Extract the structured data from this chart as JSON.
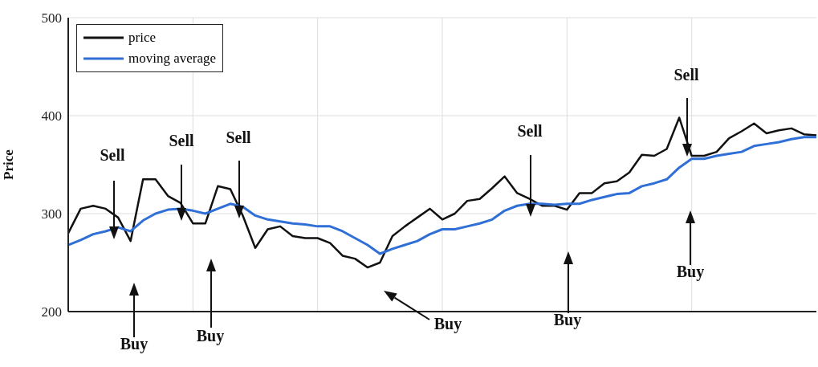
{
  "chart_data": {
    "type": "line",
    "ylabel": "Price",
    "categories": [
      null,
      null,
      null,
      null,
      null,
      null,
      null,
      null,
      null,
      null,
      null,
      null,
      null,
      null,
      null,
      null,
      null,
      null,
      null,
      null,
      null,
      null,
      null,
      null,
      null,
      null,
      null,
      null,
      null,
      null,
      null,
      null,
      null,
      null,
      null,
      null,
      null,
      null,
      null,
      null,
      null,
      null,
      null,
      null,
      null,
      null,
      null,
      null,
      null,
      null,
      null,
      null,
      null,
      null,
      null,
      null,
      null,
      null,
      null,
      null,
      null
    ],
    "series": [
      {
        "name": "price",
        "color": "#111111",
        "values": [
          280,
          305,
          308,
          305,
          296,
          272,
          335,
          335,
          318,
          311,
          290,
          290,
          328,
          325,
          298,
          265,
          284,
          287,
          277,
          275,
          275,
          270,
          257,
          254,
          245,
          250,
          277,
          287,
          296,
          305,
          294,
          300,
          313,
          315,
          326,
          338,
          321,
          315,
          308,
          308,
          304,
          321,
          321,
          331,
          333,
          342,
          360,
          359,
          366,
          398,
          359,
          359,
          363,
          377,
          384,
          392,
          382,
          385,
          387,
          381,
          380
        ]
      },
      {
        "name": "moving average",
        "color": "#2f6fd6",
        "values": [
          268,
          273,
          279,
          282,
          286,
          282,
          293,
          300,
          304,
          305,
          303,
          300,
          305,
          310,
          307,
          298,
          294,
          292,
          290,
          289,
          287,
          287,
          282,
          275,
          268,
          259,
          264,
          268,
          272,
          279,
          284,
          284,
          287,
          290,
          294,
          303,
          308,
          310,
          310,
          309,
          310,
          310,
          314,
          317,
          320,
          321,
          328,
          331,
          335,
          347,
          356,
          356,
          359,
          361,
          363,
          369,
          371,
          373,
          376,
          378,
          378
        ]
      }
    ],
    "ylim": [
      200,
      500
    ],
    "yticks": [
      200,
      300,
      400,
      500
    ],
    "grid": true,
    "legend": "top left",
    "marker": "none",
    "line_style": "solid",
    "annotations": [
      "Sell",
      "Buy",
      "Sell",
      "Buy",
      "Sell",
      "Buy",
      "Sell",
      "Buy",
      "Sell",
      "Buy"
    ]
  }
}
